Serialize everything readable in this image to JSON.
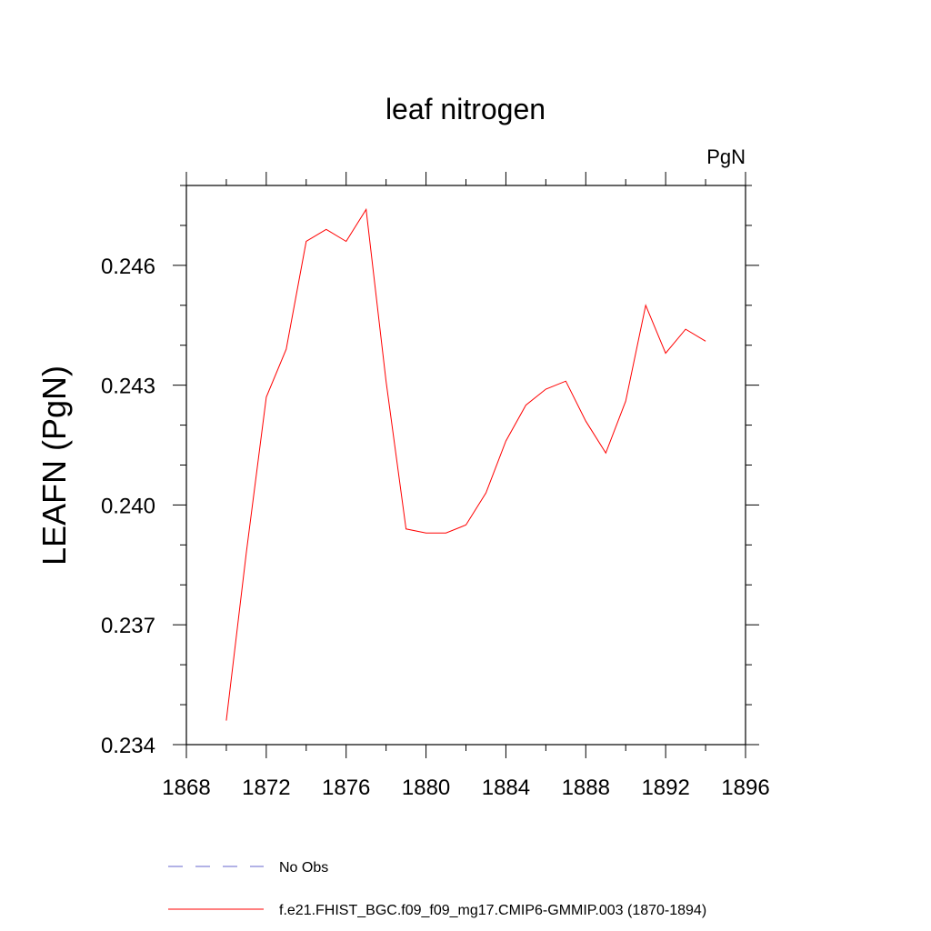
{
  "chart_data": {
    "type": "line",
    "title": "leaf nitrogen",
    "units_label": "PgN",
    "xlabel": "",
    "ylabel": "LEAFN  (PgN)",
    "xlim": [
      1868,
      1896
    ],
    "ylim": [
      0.234,
      0.248
    ],
    "x_ticks": [
      1868,
      1872,
      1876,
      1880,
      1884,
      1888,
      1892,
      1896
    ],
    "x_tick_labels": [
      "1868",
      "1872",
      "1876",
      "1880",
      "1884",
      "1888",
      "1892",
      "1896"
    ],
    "y_ticks": [
      0.234,
      0.237,
      0.24,
      0.243,
      0.246
    ],
    "y_tick_labels": [
      "0.234",
      "0.237",
      "0.240",
      "0.243",
      "0.246"
    ],
    "grid": false,
    "legend_placement": "bottom",
    "series": [
      {
        "name": "f.e21.FHIST_BGC.f09_f09_mg17.CMIP6-GMMIP.003 (1870-1894)",
        "color": "#ff0000",
        "style": "solid",
        "x": [
          1870,
          1871,
          1872,
          1873,
          1874,
          1875,
          1876,
          1877,
          1878,
          1879,
          1880,
          1881,
          1882,
          1883,
          1884,
          1885,
          1886,
          1887,
          1888,
          1889,
          1890,
          1891,
          1892,
          1893,
          1894
        ],
        "y": [
          0.2346,
          0.2388,
          0.2427,
          0.2439,
          0.2466,
          0.2469,
          0.2466,
          0.2474,
          0.2431,
          0.2394,
          0.2393,
          0.2393,
          0.2395,
          0.2403,
          0.2416,
          0.2425,
          0.2429,
          0.2431,
          0.2421,
          0.2413,
          0.2426,
          0.245,
          0.2438,
          0.2444,
          0.2441
        ]
      }
    ],
    "legend": [
      {
        "label": "No Obs",
        "color": "#6666cc",
        "style": "dashed"
      },
      {
        "label": "f.e21.FHIST_BGC.f09_f09_mg17.CMIP6-GMMIP.003 (1870-1894)",
        "color": "#ff0000",
        "style": "solid"
      }
    ]
  }
}
